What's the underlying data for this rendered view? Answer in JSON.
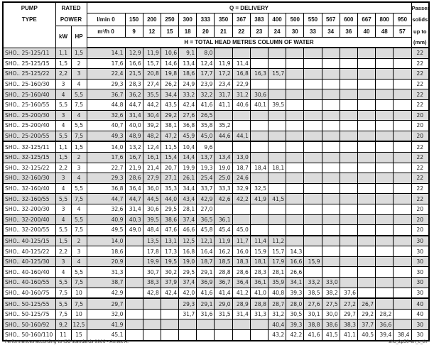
{
  "header": {
    "pump_type": [
      "PUMP",
      "TYPE"
    ],
    "rated_power": [
      "RATED",
      "POWER"
    ],
    "kw": "kW",
    "hp": "HP",
    "delivery": "Q = DELIVERY",
    "lmin_label": "l/min 0",
    "m3h_label": "m³/h 0",
    "lmin": [
      "150",
      "200",
      "250",
      "300",
      "333",
      "350",
      "367",
      "383",
      "400",
      "500",
      "550",
      "567",
      "600",
      "667",
      "800",
      "950"
    ],
    "m3h": [
      "9",
      "12",
      "15",
      "18",
      "20",
      "21",
      "22",
      "23",
      "24",
      "30",
      "33",
      "34",
      "36",
      "40",
      "48",
      "57"
    ],
    "head": "H = TOTAL HEAD METRES COLUMN OF WATER",
    "passes": [
      "Passes",
      "solids",
      "up to",
      "(mm)"
    ]
  },
  "colors": {
    "shade": "#dcdcdc",
    "border": "#000000"
  },
  "rows": [
    {
      "type": "SHO.. 25-125/11",
      "kw": "1,1",
      "hp": "1,5",
      "h": [
        "14,1",
        "12,9",
        "11,9",
        "10,6",
        "9,1",
        "8,0"
      ],
      "solids": "22"
    },
    {
      "type": "SHO.. 25-125/15",
      "kw": "1,5",
      "hp": "2",
      "h": [
        "17,6",
        "16,6",
        "15,7",
        "14,6",
        "13,4",
        "12,4",
        "11,9",
        "11,4"
      ],
      "solids": "22"
    },
    {
      "type": "SHO.. 25-125/22",
      "kw": "2,2",
      "hp": "3",
      "h": [
        "22,4",
        "21,5",
        "20,8",
        "19,8",
        "18,6",
        "17,7",
        "17,2",
        "16,8",
        "16,3",
        "15,7"
      ],
      "solids": "22"
    },
    {
      "type": "SHO.. 25-160/30",
      "kw": "3",
      "hp": "4",
      "h": [
        "29,3",
        "28,3",
        "27,4",
        "26,2",
        "24,9",
        "23,9",
        "23,4",
        "22,9"
      ],
      "solids": "22"
    },
    {
      "type": "SHO.. 25-160/40",
      "kw": "4",
      "hp": "5,5",
      "h": [
        "36,7",
        "36,2",
        "35,5",
        "34,4",
        "33,2",
        "32,2",
        "31,7",
        "31,2",
        "30,6"
      ],
      "solids": "22"
    },
    {
      "type": "SHO.. 25-160/55",
      "kw": "5,5",
      "hp": "7,5",
      "h": [
        "44,8",
        "44,7",
        "44,2",
        "43,5",
        "42,4",
        "41,6",
        "41,1",
        "40,6",
        "40,1",
        "39,5"
      ],
      "solids": "22"
    },
    {
      "type": "SHO.. 25-200/30",
      "kw": "3",
      "hp": "4",
      "h": [
        "32,6",
        "31,4",
        "30,4",
        "29,2",
        "27,6",
        "26,5"
      ],
      "solids": "20"
    },
    {
      "type": "SHO.. 25-200/40",
      "kw": "4",
      "hp": "5,5",
      "h": [
        "40,7",
        "40,0",
        "39,2",
        "38,1",
        "36,8",
        "35,8",
        "35,2"
      ],
      "solids": "20"
    },
    {
      "type": "SHO.. 25-200/55",
      "kw": "5,5",
      "hp": "7,5",
      "h": [
        "49,3",
        "48,9",
        "48,2",
        "47,2",
        "45,9",
        "45,0",
        "44,6",
        "44,1"
      ],
      "solids": "20",
      "group_end": true
    },
    {
      "type": "SHO.. 32-125/11",
      "kw": "1,1",
      "hp": "1,5",
      "h": [
        "14,0",
        "13,2",
        "12,4",
        "11,5",
        "10,4",
        "9,6"
      ],
      "solids": "22"
    },
    {
      "type": "SHO.. 32-125/15",
      "kw": "1,5",
      "hp": "2",
      "h": [
        "17,6",
        "16,7",
        "16,1",
        "15,4",
        "14,4",
        "13,7",
        "13,4",
        "13,0"
      ],
      "solids": "22"
    },
    {
      "type": "SHO.. 32-125/22",
      "kw": "2,2",
      "hp": "3",
      "h": [
        "22,7",
        "21,9",
        "21,4",
        "20,7",
        "19,9",
        "19,3",
        "19,0",
        "18,7",
        "18,4",
        "18,1"
      ],
      "solids": "22"
    },
    {
      "type": "SHO.. 32-160/30",
      "kw": "3",
      "hp": "4",
      "h": [
        "29,3",
        "28,6",
        "27,9",
        "27,1",
        "26,1",
        "25,4",
        "25,0",
        "24,6"
      ],
      "solids": "22"
    },
    {
      "type": "SHO.. 32-160/40",
      "kw": "4",
      "hp": "5,5",
      "h": [
        "36,8",
        "36,4",
        "36,0",
        "35,3",
        "34,4",
        "33,7",
        "33,3",
        "32,9",
        "32,5"
      ],
      "solids": "22"
    },
    {
      "type": "SHO.. 32-160/55",
      "kw": "5,5",
      "hp": "7,5",
      "h": [
        "44,7",
        "44,7",
        "44,5",
        "44,0",
        "43,4",
        "42,9",
        "42,6",
        "42,2",
        "41,9",
        "41,5"
      ],
      "solids": "22"
    },
    {
      "type": "SHO.. 32-200/30",
      "kw": "3",
      "hp": "4",
      "h": [
        "32,6",
        "31,4",
        "30,6",
        "29,5",
        "28,1",
        "27,0"
      ],
      "solids": "20"
    },
    {
      "type": "SHO.. 32-200/40",
      "kw": "4",
      "hp": "5,5",
      "h": [
        "40,9",
        "40,3",
        "39,5",
        "38,6",
        "37,4",
        "36,5",
        "36,1"
      ],
      "solids": "20"
    },
    {
      "type": "SHO.. 32-200/55",
      "kw": "5,5",
      "hp": "7,5",
      "h": [
        "49,5",
        "49,0",
        "48,4",
        "47,6",
        "46,6",
        "45,8",
        "45,4",
        "45,0"
      ],
      "solids": "20",
      "group_end": true
    },
    {
      "type": "SHO.. 40-125/15",
      "kw": "1,5",
      "hp": "2",
      "h": [
        "14,0",
        "",
        "13,5",
        "13,1",
        "12,5",
        "12,1",
        "11,9",
        "11,7",
        "11,4",
        "11,2"
      ],
      "solids": "30"
    },
    {
      "type": "SHO.. 40-125/22",
      "kw": "2,2",
      "hp": "3",
      "h": [
        "18,6",
        "",
        "17,8",
        "17,3",
        "16,8",
        "16,4",
        "16,2",
        "16,0",
        "15,9",
        "15,7",
        "14,3"
      ],
      "solids": "30"
    },
    {
      "type": "SHO.. 40-125/30",
      "kw": "3",
      "hp": "4",
      "h": [
        "20,9",
        "",
        "19,9",
        "19,5",
        "19,0",
        "18,7",
        "18,5",
        "18,3",
        "18,1",
        "17,9",
        "16,6",
        "15,9"
      ],
      "solids": "30"
    },
    {
      "type": "SHO.. 40-160/40",
      "kw": "4",
      "hp": "5,5",
      "h": [
        "31,3",
        "",
        "30,7",
        "30,2",
        "29,5",
        "29,1",
        "28,8",
        "28,6",
        "28,3",
        "28,1",
        "26,6"
      ],
      "solids": "30"
    },
    {
      "type": "SHO.. 40-160/55",
      "kw": "5,5",
      "hp": "7,5",
      "h": [
        "38,7",
        "",
        "38,3",
        "37,9",
        "37,4",
        "36,9",
        "36,7",
        "36,4",
        "36,1",
        "35,9",
        "34,1",
        "33,2",
        "33,0"
      ],
      "solids": "30"
    },
    {
      "type": "SHO.. 40-160/75",
      "kw": "7,5",
      "hp": "10",
      "h": [
        "42,9",
        "",
        "42,8",
        "42,4",
        "42,0",
        "41,6",
        "41,4",
        "41,2",
        "41,0",
        "40,8",
        "39,3",
        "38,5",
        "38,2",
        "37,6"
      ],
      "solids": "30",
      "group_end": true
    },
    {
      "type": "SHO.. 50-125/55",
      "kw": "5,5",
      "hp": "7,5",
      "h": [
        "29,7",
        "",
        "",
        "",
        "29,3",
        "29,1",
        "29,0",
        "28,9",
        "28,8",
        "28,7",
        "28,0",
        "27,6",
        "27,5",
        "27,2",
        "26,7"
      ],
      "solids": "40"
    },
    {
      "type": "SHO.. 50-125/75",
      "kw": "7,5",
      "hp": "10",
      "h": [
        "32,0",
        "",
        "",
        "",
        "31,7",
        "31,6",
        "31,5",
        "31,4",
        "31,3",
        "31,2",
        "30,5",
        "30,1",
        "30,0",
        "29,7",
        "29,2",
        "28,2"
      ],
      "solids": "40"
    },
    {
      "type": "SHO.. 50-160/92",
      "kw": "9,2",
      "hp": "12,5",
      "h": [
        "41,9",
        "",
        "",
        "",
        "",
        "",
        "",
        "",
        "",
        "40,4",
        "39,3",
        "38,8",
        "38,6",
        "38,3",
        "37,7",
        "36,6"
      ],
      "solids": "30"
    },
    {
      "type": "SHO.. 50-160/110",
      "kw": "11",
      "hp": "15",
      "h": [
        "45,1",
        "",
        "",
        "",
        "",
        "",
        "",
        "",
        "",
        "43,2",
        "42,2",
        "41,6",
        "41,5",
        "41,1",
        "40,5",
        "39,4",
        "38,4"
      ],
      "solids": "30"
    }
  ],
  "footer": {
    "note": "Performances according to ISO standards 9906 - Annex A.",
    "code": "sho_2p50-en_c_th"
  }
}
